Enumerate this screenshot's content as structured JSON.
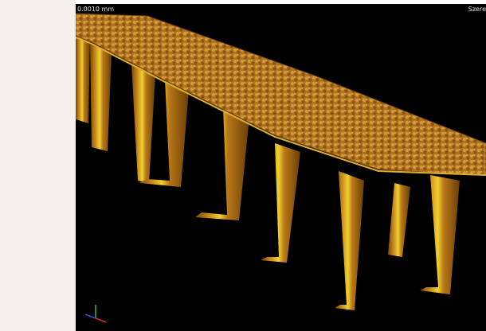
{
  "viewport": {
    "scale_label": "0.0010 mm",
    "corner_label": "Szere"
  }
}
